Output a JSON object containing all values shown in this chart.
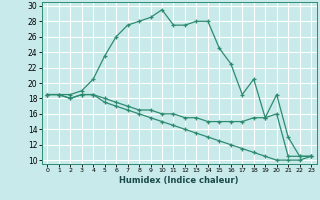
{
  "xlabel": "Humidex (Indice chaleur)",
  "background_color": "#c8eaea",
  "grid_color": "#ffffff",
  "line_color": "#2d8b70",
  "xlim": [
    -0.5,
    23.5
  ],
  "ylim": [
    9.5,
    30.5
  ],
  "xticks": [
    0,
    1,
    2,
    3,
    4,
    5,
    6,
    7,
    8,
    9,
    10,
    11,
    12,
    13,
    14,
    15,
    16,
    17,
    18,
    19,
    20,
    21,
    22,
    23
  ],
  "yticks": [
    10,
    12,
    14,
    16,
    18,
    20,
    22,
    24,
    26,
    28,
    30
  ],
  "line1_x": [
    0,
    1,
    2,
    3,
    4,
    5,
    6,
    7,
    8,
    9,
    10,
    11,
    12,
    13,
    14,
    15,
    16,
    17,
    18,
    19,
    20,
    21,
    22,
    23
  ],
  "line1_y": [
    18.5,
    18.5,
    18.5,
    19.0,
    20.5,
    23.5,
    26.0,
    27.5,
    28.0,
    28.5,
    29.5,
    27.5,
    27.5,
    28.0,
    28.0,
    24.5,
    22.5,
    18.5,
    20.5,
    15.5,
    18.5,
    13.0,
    10.5,
    10.5
  ],
  "line2_x": [
    0,
    1,
    2,
    3,
    4,
    5,
    6,
    7,
    8,
    9,
    10,
    11,
    12,
    13,
    14,
    15,
    16,
    17,
    18,
    19,
    20,
    21,
    22,
    23
  ],
  "line2_y": [
    18.5,
    18.5,
    18.0,
    18.5,
    18.5,
    18.0,
    17.5,
    17.0,
    16.5,
    16.5,
    16.0,
    16.0,
    15.5,
    15.5,
    15.0,
    15.0,
    15.0,
    15.0,
    15.5,
    15.5,
    16.0,
    10.5,
    10.5,
    10.5
  ],
  "line3_x": [
    0,
    1,
    2,
    3,
    4,
    5,
    6,
    7,
    8,
    9,
    10,
    11,
    12,
    13,
    14,
    15,
    16,
    17,
    18,
    19,
    20,
    21,
    22,
    23
  ],
  "line3_y": [
    18.5,
    18.5,
    18.0,
    18.5,
    18.5,
    17.5,
    17.0,
    16.5,
    16.0,
    15.5,
    15.0,
    14.5,
    14.0,
    13.5,
    13.0,
    12.5,
    12.0,
    11.5,
    11.0,
    10.5,
    10.0,
    10.0,
    10.0,
    10.5
  ]
}
